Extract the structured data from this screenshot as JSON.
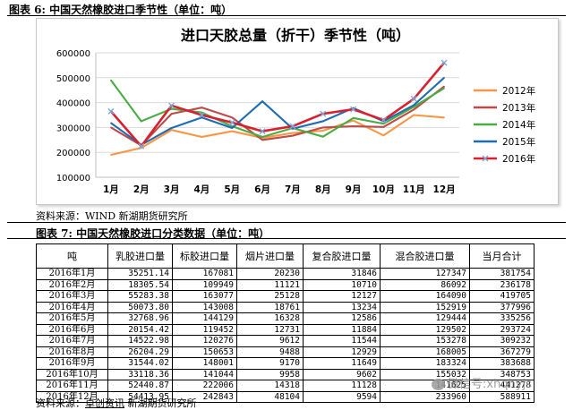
{
  "figure1": {
    "title": "图表 6: 中国天然橡胶进口季节性（单位：吨）",
    "source": "资料来源：WIND      新湖期货研究所"
  },
  "chart_data": {
    "type": "line",
    "title": "进口天胶总量（折干）季节性（吨）",
    "categories": [
      "1月",
      "2月",
      "3月",
      "4月",
      "5月",
      "6月",
      "7月",
      "8月",
      "9月",
      "10月",
      "11月",
      "12月"
    ],
    "ylim": [
      100000,
      600000
    ],
    "yticks": [
      "100000",
      "200000",
      "300000",
      "400000",
      "500000",
      "600000"
    ],
    "grid": true,
    "legend_position": "right",
    "series": [
      {
        "name": "2012年",
        "color": "#f79646",
        "marker": false,
        "values": [
          190000,
          218000,
          290000,
          262000,
          285000,
          258000,
          278000,
          287000,
          328000,
          268000,
          350000,
          340000
        ]
      },
      {
        "name": "2013年",
        "color": "#be4b48",
        "marker": false,
        "values": [
          300000,
          228000,
          355000,
          380000,
          340000,
          250000,
          267000,
          300000,
          305000,
          302000,
          372000,
          465000
        ]
      },
      {
        "name": "2014年",
        "color": "#4aac44",
        "marker": false,
        "values": [
          490000,
          325000,
          375000,
          360000,
          305000,
          262000,
          298000,
          263000,
          338000,
          315000,
          383000,
          458000
        ]
      },
      {
        "name": "2015年",
        "color": "#1f6cb4",
        "marker": false,
        "values": [
          318000,
          230000,
          298000,
          340000,
          298000,
          405000,
          295000,
          325000,
          378000,
          325000,
          390000,
          500000
        ]
      },
      {
        "name": "2016年",
        "color": "#d7212e",
        "marker": true,
        "values": [
          365000,
          225000,
          388000,
          350000,
          320000,
          285000,
          305000,
          355000,
          373000,
          330000,
          415000,
          560000
        ]
      }
    ]
  },
  "figure2": {
    "title": "图表 7: 中国天然橡胶进口分类数据（单位：吨）",
    "source_prefix": "资料来源：",
    "source_highlight": "卓创资讯",
    "source_suffix": "     新湖期货研究所",
    "headers": [
      "吨",
      "乳胶进口量",
      "标胶进口量",
      "烟片进口量",
      "复合胶进口量",
      "混合胶进口量",
      "当月合计"
    ],
    "rows": [
      [
        "2016年1月",
        "35251.14",
        "167081",
        "20230",
        "31846",
        "127347",
        "381754"
      ],
      [
        "2016年2月",
        "18305.54",
        "109949",
        "11121",
        "10710",
        "86092",
        "236178"
      ],
      [
        "2016年3月",
        "55283.38",
        "163077",
        "25128",
        "12127",
        "164090",
        "419705"
      ],
      [
        "2016年4月",
        "50073.80",
        "143008",
        "18761",
        "13234",
        "152919",
        "377996"
      ],
      [
        "2016年5月",
        "32768.96",
        "144129",
        "16328",
        "12586",
        "129444",
        "335256"
      ],
      [
        "2016年6月",
        "20154.42",
        "119452",
        "12731",
        "11884",
        "129502",
        "293724"
      ],
      [
        "2016年7月",
        "14522.98",
        "120276",
        "9612",
        "11544",
        "153278",
        "309232"
      ],
      [
        "2016年8月",
        "26204.29",
        "150653",
        "9488",
        "12929",
        "168005",
        "367279"
      ],
      [
        "2016年9月",
        "31544.02",
        "148001",
        "9170",
        "11649",
        "183324",
        "383688"
      ],
      [
        "2016年10月",
        "33118.36",
        "141044",
        "9958",
        "9602",
        "155032",
        "348753"
      ],
      [
        "2016年11月",
        "52440.87",
        "222006",
        "14318",
        "11128",
        "141625",
        "441278"
      ],
      [
        "2016年12月",
        "54413.95",
        "242843",
        "48104",
        "9594",
        "233960",
        "588911"
      ]
    ]
  },
  "watermark": "微信号:xhqhyjs"
}
